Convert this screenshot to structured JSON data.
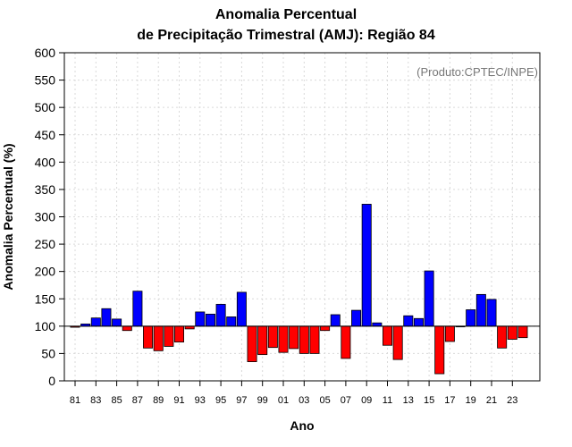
{
  "chart_data": {
    "type": "bar",
    "title_line1": "Anomalia Percentual",
    "title_line2": "de Precipitação Trimestral (AMJ): Região 84",
    "xlabel": "Ano",
    "ylabel": "Anomalia Percentual (%)",
    "credit": "(Produto:CPTEC/INPE)",
    "ylim": [
      0,
      600
    ],
    "yticks": [
      0,
      50,
      100,
      150,
      200,
      250,
      300,
      350,
      400,
      450,
      500,
      550,
      600
    ],
    "baseline": 100,
    "grid": true,
    "colors": {
      "above": "#0000ff",
      "below": "#ff0000",
      "outline": "#000000",
      "grid": "#d9d9d9"
    },
    "years": [
      "81",
      "82",
      "83",
      "84",
      "85",
      "86",
      "87",
      "88",
      "89",
      "90",
      "91",
      "92",
      "93",
      "94",
      "95",
      "96",
      "97",
      "98",
      "99",
      "00",
      "01",
      "02",
      "03",
      "04",
      "05",
      "06",
      "07",
      "08",
      "09",
      "10",
      "11",
      "12",
      "13",
      "14",
      "15",
      "16",
      "17",
      "18",
      "19",
      "20",
      "21",
      "22",
      "23",
      "24"
    ],
    "xtick_labels": [
      "81",
      "83",
      "85",
      "87",
      "89",
      "91",
      "93",
      "95",
      "97",
      "99",
      "01",
      "03",
      "05",
      "07",
      "09",
      "11",
      "13",
      "15",
      "17",
      "19",
      "21",
      "23"
    ],
    "values": [
      98,
      104,
      115,
      132,
      113,
      92,
      164,
      60,
      55,
      63,
      71,
      95,
      126,
      122,
      140,
      117,
      162,
      35,
      48,
      61,
      52,
      59,
      50,
      50,
      92,
      121,
      41,
      129,
      323,
      106,
      65,
      39,
      119,
      114,
      201,
      13,
      72,
      100,
      130,
      158,
      149,
      60,
      76,
      79
    ]
  }
}
